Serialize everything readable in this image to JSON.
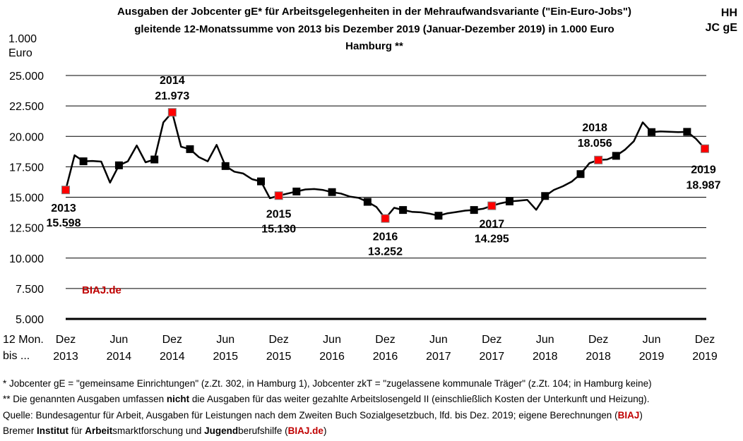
{
  "header": {
    "title_line1": "Ausgaben der Jobcenter gE* für Arbeitsgelegenheiten in der Mehraufwandsvariante (\"Ein-Euro-Jobs\")",
    "title_line2": "gleitende 12-Monatssumme von 2013 bis Dezember 2019 (Januar-Dezember 2019) in 1.000 Euro",
    "title_line3": "Hamburg **",
    "corner_line1": "HH",
    "corner_line2": "JC gE"
  },
  "axis": {
    "y_unit_line1": "1.000",
    "y_unit_line2": "Euro",
    "x_prefix_line1": "12 Mon.",
    "x_prefix_line2": "bis ..."
  },
  "chart_data": {
    "type": "line",
    "title": "Ausgaben der Jobcenter gE* für Arbeitsgelegenheiten in der Mehraufwandsvariante (\"Ein-Euro-Jobs\")",
    "xlabel": "12 Mon. bis ...",
    "ylabel": "1.000 Euro",
    "ylim": [
      5000,
      25000
    ],
    "y_ticks": [
      {
        "v": 25000,
        "label": "25.000"
      },
      {
        "v": 22500,
        "label": "22.500"
      },
      {
        "v": 20000,
        "label": "20.000"
      },
      {
        "v": 17500,
        "label": "17.500"
      },
      {
        "v": 15000,
        "label": "15.000"
      },
      {
        "v": 12500,
        "label": "12.500"
      },
      {
        "v": 10000,
        "label": "10.000"
      },
      {
        "v": 7500,
        "label": "7.500"
      },
      {
        "v": 5000,
        "label": "5.000"
      }
    ],
    "grid": "horizontal",
    "x_ticks": [
      {
        "i": 0,
        "m": "Dez",
        "y": "2013"
      },
      {
        "i": 6,
        "m": "Jun",
        "y": "2014"
      },
      {
        "i": 12,
        "m": "Dez",
        "y": "2014"
      },
      {
        "i": 18,
        "m": "Jun",
        "y": "2015"
      },
      {
        "i": 24,
        "m": "Dez",
        "y": "2015"
      },
      {
        "i": 30,
        "m": "Jun",
        "y": "2016"
      },
      {
        "i": 36,
        "m": "Dez",
        "y": "2016"
      },
      {
        "i": 42,
        "m": "Jun",
        "y": "2017"
      },
      {
        "i": 48,
        "m": "Dez",
        "y": "2017"
      },
      {
        "i": 54,
        "m": "Jun",
        "y": "2018"
      },
      {
        "i": 60,
        "m": "Dez",
        "y": "2018"
      },
      {
        "i": 66,
        "m": "Jun",
        "y": "2019"
      },
      {
        "i": 72,
        "m": "Dez",
        "y": "2019"
      }
    ],
    "series": [
      {
        "values": [
          15598,
          18450,
          17950,
          17980,
          17930,
          16200,
          17620,
          17950,
          19250,
          17870,
          18100,
          21150,
          21973,
          19150,
          18950,
          18300,
          17950,
          19300,
          17560,
          17100,
          16950,
          16480,
          16300,
          14920,
          15130,
          15300,
          15470,
          15640,
          15670,
          15590,
          15420,
          15300,
          15050,
          14950,
          14620,
          14200,
          13252,
          14130,
          13950,
          13800,
          13760,
          13650,
          13480,
          13680,
          13780,
          13900,
          13950,
          14050,
          14295,
          14500,
          14650,
          14710,
          14780,
          13970,
          15100,
          15600,
          15900,
          16280,
          16900,
          17800,
          18056,
          18100,
          18400,
          18900,
          19600,
          21150,
          20350,
          20400,
          20380,
          20350,
          20370,
          19800,
          18987
        ],
        "markers_black": [
          2,
          6,
          10,
          14,
          18,
          22,
          26,
          30,
          34,
          38,
          42,
          46,
          50,
          54,
          58,
          62,
          66,
          70
        ],
        "markers_red": [
          0,
          12,
          24,
          36,
          48,
          60,
          72
        ]
      }
    ],
    "annotations": [
      {
        "i": 0,
        "year": "2013",
        "value": "15.598",
        "pos": "below"
      },
      {
        "i": 12,
        "year": "2014",
        "value": "21.973",
        "pos": "above"
      },
      {
        "i": 24,
        "year": "2015",
        "value": "15.130",
        "pos": "below"
      },
      {
        "i": 36,
        "year": "2016",
        "value": "13.252",
        "pos": "below"
      },
      {
        "i": 48,
        "year": "2017",
        "value": "14.295",
        "pos": "below"
      },
      {
        "i": 60,
        "year": "2018",
        "value": "18.056",
        "pos": "above"
      },
      {
        "i": 72,
        "year": "2019",
        "value": "18.987",
        "pos": "below"
      }
    ],
    "watermark": "BIAJ.de",
    "colors": {
      "line": "#000000",
      "marker_black": "#000000",
      "marker_red": "#ff0000",
      "watermark": "#c00000"
    }
  },
  "footer": {
    "f1": "*   Jobcenter gE = \"gemeinsame Einrichtungen\" (z.Zt. 302, in Hamburg 1), Jobcenter zkT = \"zugelassene kommunale Träger\" (z.Zt. 104; in Hamburg keine)",
    "f2_a": "** Die genannten Ausgaben umfassen ",
    "f2_b": "nicht",
    "f2_c": " die Ausgaben für das weiter gezahlte Arbeitslosengeld II (einschließlich Kosten der Unterkunft und Heizung).",
    "f3_a": "Quelle: Bundesagentur für Arbeit, Ausgaben für Leistungen nach dem Zweiten Buch Sozialgesetzbuch, lfd. bis Dez. 2019; eigene Berechnungen (",
    "f3_b": "BIAJ",
    "f3_c": ")",
    "f4_a": "Bremer ",
    "f4_b": "Institut",
    "f4_c": " für ",
    "f4_d": "Arbeit",
    "f4_e": "smarktforschung und ",
    "f4_f": "Jugend",
    "f4_g": "berufshilfe (",
    "f4_h": "BIAJ.de",
    "f4_i": ")"
  }
}
